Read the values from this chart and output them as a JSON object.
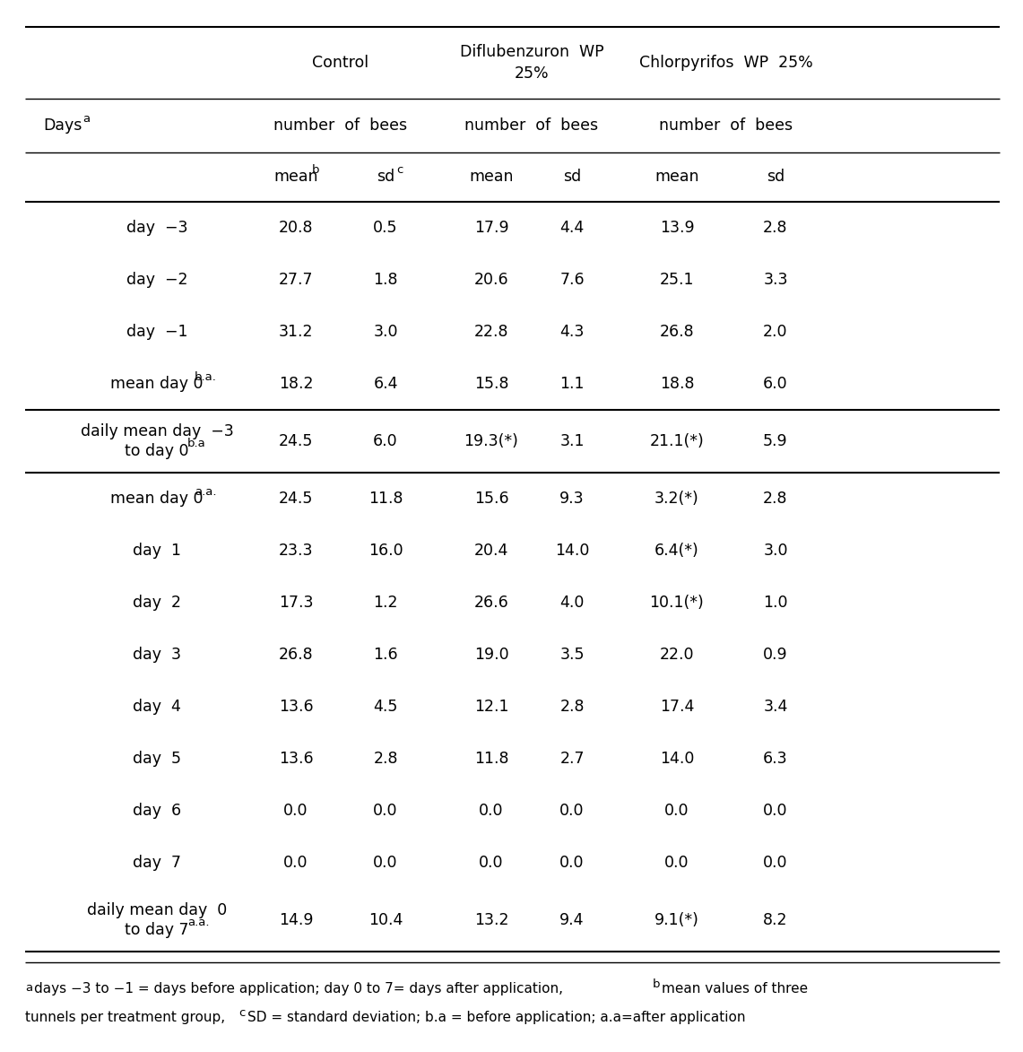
{
  "col_headers_top": [
    "Control",
    "Diflubenzuron WP\n25%",
    "Chlorpyrifos  WP  25%"
  ],
  "col_headers_mid": [
    "number  of  bees",
    "number  of  bees",
    "number  of  bees"
  ],
  "col_headers_bot_base": [
    "mean",
    "sd",
    "mean",
    "sd",
    "mean",
    "sd"
  ],
  "col_headers_bot_sup": [
    "b",
    "c",
    "",
    "",
    "",
    ""
  ],
  "row_labels": [
    [
      "day  −3",
      false
    ],
    [
      "day  −2",
      false
    ],
    [
      "day  −1",
      false
    ],
    [
      "mean day 0",
      "b.a."
    ],
    [
      "daily mean day  −3\nto day 0",
      "b.a"
    ],
    [
      "mean day 0",
      "a.a."
    ],
    [
      "day  1",
      false
    ],
    [
      "day  2",
      false
    ],
    [
      "day  3",
      false
    ],
    [
      "day  4",
      false
    ],
    [
      "day  5",
      false
    ],
    [
      "day  6",
      false
    ],
    [
      "day  7",
      false
    ],
    [
      "daily mean day  0\nto day 7",
      "a.a."
    ]
  ],
  "data": [
    [
      "20.8",
      "0.5",
      "17.9",
      "4.4",
      "13.9",
      "2.8"
    ],
    [
      "27.7",
      "1.8",
      "20.6",
      "7.6",
      "25.1",
      "3.3"
    ],
    [
      "31.2",
      "3.0",
      "22.8",
      "4.3",
      "26.8",
      "2.0"
    ],
    [
      "18.2",
      "6.4",
      "15.8",
      "1.1",
      "18.8",
      "6.0"
    ],
    [
      "24.5",
      "6.0",
      "19.3(*)",
      "3.1",
      "21.1(*)",
      "5.9"
    ],
    [
      "24.5",
      "11.8",
      "15.6",
      "9.3",
      "3.2(*)",
      "2.8"
    ],
    [
      "23.3",
      "16.0",
      "20.4",
      "14.0",
      "6.4(*)",
      "3.0"
    ],
    [
      "17.3",
      "1.2",
      "26.6",
      "4.0",
      "10.1(*)",
      "1.0"
    ],
    [
      "26.8",
      "1.6",
      "19.0",
      "3.5",
      "22.0",
      "0.9"
    ],
    [
      "13.6",
      "4.5",
      "12.1",
      "2.8",
      "17.4",
      "3.4"
    ],
    [
      "13.6",
      "2.8",
      "11.8",
      "2.7",
      "14.0",
      "6.3"
    ],
    [
      "0.0",
      "0.0",
      "0.0",
      "0.0",
      "0.0",
      "0.0"
    ],
    [
      "0.0",
      "0.0",
      "0.0",
      "0.0",
      "0.0",
      "0.0"
    ],
    [
      "14.9",
      "10.4",
      "13.2",
      "9.4",
      "9.1(*)",
      "8.2"
    ]
  ],
  "footnote_line1": "days −3 to −1 = days before application; day 0 to 7= days after application, mean values of three",
  "footnote_line1_sups": [
    [
      0,
      "a"
    ],
    [
      51,
      "b"
    ]
  ],
  "footnote_line2": "tunnels per treatment group,  SD = standard deviation; b.a = before application; a.a=after application",
  "footnote_line2_sups": [
    [
      26,
      "c"
    ]
  ],
  "background_color": "#ffffff",
  "font_size": 12.5,
  "font_size_small": 9.5,
  "font_size_footnote": 11.0
}
